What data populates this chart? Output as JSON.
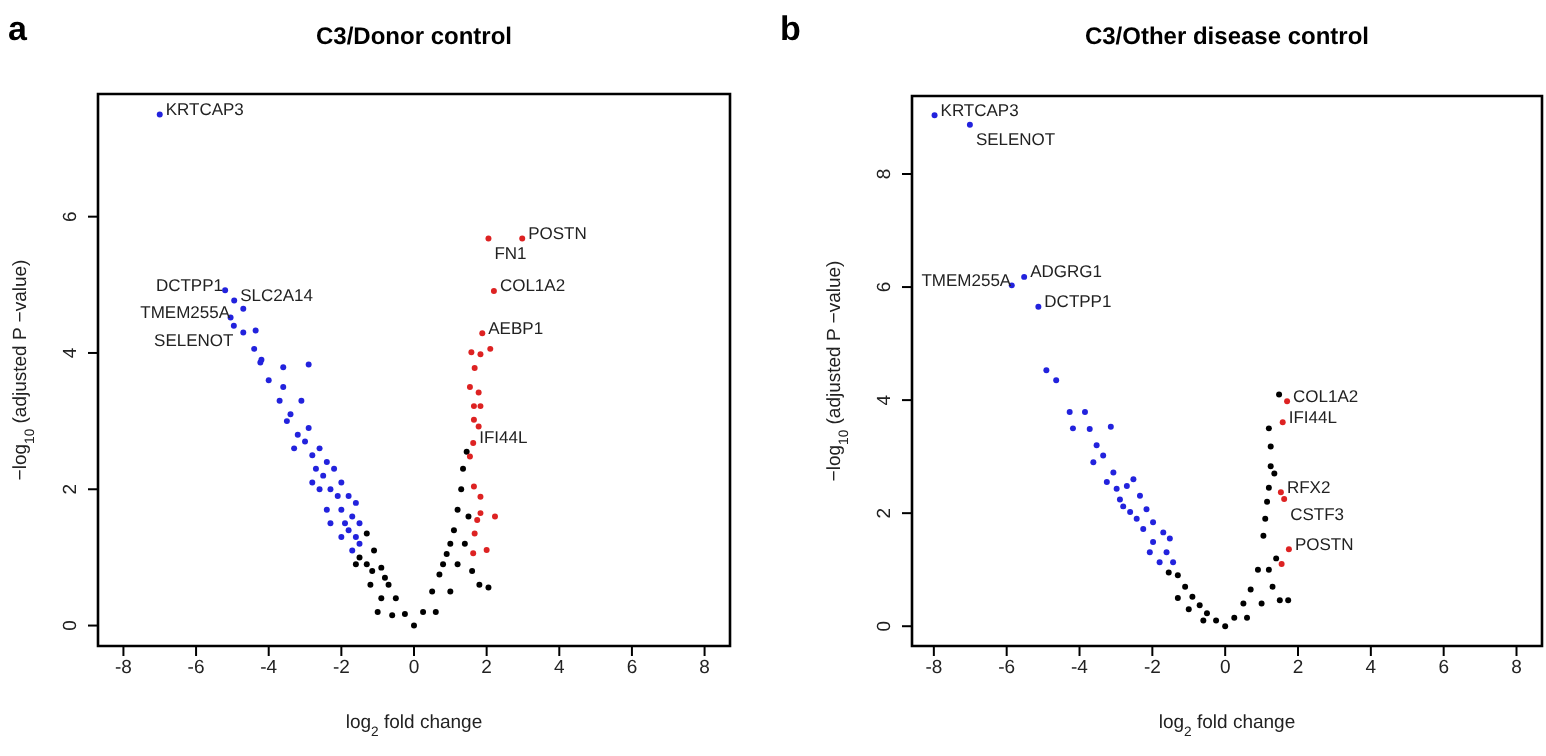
{
  "chart_data": [
    {
      "type": "scatter",
      "title": "C3/Donor control",
      "xlabel": "log$_{2}$ fold change",
      "ylabel": "−log$_{10}$ (adjusted P −value)",
      "marker": "circle",
      "xlim": [
        -8.7,
        8.7
      ],
      "ylim": [
        -0.3,
        7.8
      ],
      "xticks": [
        -8,
        -6,
        -4,
        -2,
        0,
        2,
        4,
        6,
        8
      ],
      "yticks": [
        0,
        2,
        4,
        6
      ],
      "series": [
        {
          "color": "#000000",
          "x": [
            0,
            -0.25,
            0.25,
            -0.5,
            0.5,
            -0.7,
            0.7,
            -0.9,
            0.9,
            -1.1,
            1.1,
            -1.3,
            1.3,
            -1.15,
            1.35,
            1.45,
            -1.3,
            -1.5,
            -1.2,
            -0.9,
            -1.0,
            -0.6,
            0.6,
            1.0,
            1.2,
            1.4,
            1.6,
            1.8,
            2.05,
            1.5,
            -1.6,
            1.2,
            1.0,
            -0.8,
            0.8
          ],
          "values": [
            0,
            0.17,
            0.2,
            0.4,
            0.5,
            0.6,
            0.75,
            0.85,
            1.05,
            1.1,
            1.4,
            1.35,
            2.0,
            0.8,
            2.3,
            2.55,
            0.9,
            1.0,
            0.6,
            0.4,
            0.2,
            0.15,
            0.2,
            0.5,
            0.9,
            1.2,
            0.8,
            0.6,
            0.56,
            1.6,
            0.9,
            1.7,
            1.2,
            0.7,
            0.9
          ]
        },
        {
          "color": "#2222dd",
          "x": [
            -7.0,
            -4.95,
            -5.2,
            -5.05,
            -4.7,
            -4.96,
            -4.7,
            -4.36,
            -4.4,
            -4.23,
            -3.6,
            -2.9,
            -4.2,
            -4.0,
            -3.7,
            -3.6,
            -3.4,
            -3.5,
            -3.2,
            -3.0,
            -3.1,
            -2.8,
            -2.9,
            -2.7,
            -2.6,
            -2.5,
            -2.4,
            -2.3,
            -2.2,
            -2.1,
            -2.0,
            -2.0,
            -1.9,
            -1.8,
            -1.8,
            -1.7,
            -1.6,
            -1.6,
            -1.5,
            -1.5,
            -2.4,
            -2.6,
            -2.8,
            -3.3,
            -2.3,
            -2.0,
            -1.7
          ],
          "values": [
            7.5,
            4.77,
            4.92,
            4.52,
            4.65,
            4.4,
            4.3,
            4.33,
            4.06,
            3.86,
            3.79,
            3.83,
            3.9,
            3.6,
            3.3,
            3.5,
            3.1,
            3.0,
            2.8,
            2.7,
            3.3,
            2.5,
            2.9,
            2.3,
            2.6,
            2.2,
            2.4,
            2.0,
            2.3,
            1.9,
            2.1,
            1.7,
            1.5,
            1.9,
            1.4,
            1.6,
            1.3,
            1.8,
            1.2,
            1.5,
            1.7,
            2.0,
            2.1,
            2.6,
            1.5,
            1.3,
            1.1
          ]
        },
        {
          "color": "#dd2222",
          "x": [
            2.05,
            2.98,
            2.2,
            1.88,
            1.58,
            1.83,
            2.1,
            1.67,
            1.54,
            1.78,
            1.65,
            1.83,
            1.65,
            1.78,
            1.63,
            1.54,
            1.65,
            1.83,
            2.23,
            1.74,
            2.0,
            1.63,
            1.67,
            1.83
          ],
          "values": [
            5.68,
            5.68,
            4.91,
            4.29,
            4.01,
            3.98,
            4.06,
            3.78,
            3.5,
            3.42,
            3.22,
            3.22,
            3.02,
            2.92,
            2.68,
            2.48,
            2.04,
            1.89,
            1.6,
            1.55,
            1.11,
            1.06,
            1.35,
            1.65
          ]
        }
      ],
      "annotations": [
        "a",
        {
          "text": "KRTCAP3",
          "x": -7.0,
          "y": 7.5
        },
        {
          "text": "POSTN",
          "x": 2.98,
          "y": 5.68
        },
        {
          "text": "FN1",
          "x": 2.05,
          "y": 5.68
        },
        {
          "text": "COL1A2",
          "x": 2.2,
          "y": 4.91
        },
        {
          "text": "AEBP1",
          "x": 1.88,
          "y": 4.29
        },
        {
          "text": "SLC2A14",
          "x": -4.95,
          "y": 4.77
        },
        {
          "text": "DCTPP1",
          "x": -5.2,
          "y": 4.92
        },
        {
          "text": "TMEM255A",
          "x": -5.05,
          "y": 4.52
        },
        {
          "text": "SELENOT",
          "x": -4.96,
          "y": 4.4
        },
        {
          "text": "IFI44L",
          "x": 1.63,
          "y": 2.68
        }
      ]
    },
    {
      "type": "scatter",
      "title": "C3/Other disease control",
      "xlabel": "log$_{2}$ fold change",
      "ylabel": "−log$_{10}$ (adjusted P −value)",
      "marker": "circle",
      "xlim": [
        -8.6,
        8.7
      ],
      "ylim": [
        -0.35,
        9.38
      ],
      "xticks": [
        -8,
        -6,
        -4,
        -2,
        0,
        2,
        4,
        6,
        8
      ],
      "yticks": [
        0,
        2,
        4,
        6,
        8
      ],
      "series": [
        {
          "color": "#000000",
          "x": [
            0,
            -0.25,
            0.25,
            -0.5,
            0.5,
            -0.7,
            0.7,
            -0.9,
            0.9,
            -1.1,
            1.05,
            -1.3,
            1.1,
            -1.55,
            1.15,
            1.2,
            1.25,
            1.25,
            1.2,
            1.48,
            1.35,
            1.5,
            1.73,
            1.3,
            1.0,
            -1.0,
            -0.6,
            0.6,
            1.2,
            1.4,
            -1.3
          ],
          "values": [
            0,
            0.1,
            0.15,
            0.23,
            0.4,
            0.37,
            0.65,
            0.52,
            1.0,
            0.7,
            1.6,
            0.9,
            1.9,
            0.95,
            2.2,
            2.45,
            2.83,
            3.18,
            3.5,
            4.1,
            2.7,
            0.46,
            0.46,
            0.7,
            0.4,
            0.3,
            0.1,
            0.15,
            1.0,
            1.2,
            0.5
          ]
        },
        {
          "color": "#2222dd",
          "x": [
            -7.98,
            -7.01,
            -5.86,
            -5.52,
            -5.13,
            -4.91,
            -4.64,
            -4.27,
            -3.85,
            -4.18,
            -3.72,
            -3.14,
            -3.53,
            -3.35,
            -3.62,
            -3.07,
            -3.25,
            -2.7,
            -2.52,
            -2.89,
            -2.34,
            -2.16,
            -2.61,
            -1.98,
            -2.25,
            -1.7,
            -1.98,
            -1.61,
            -1.8,
            -1.43,
            -2.07,
            -1.52,
            -2.43,
            -2.8,
            -2.98
          ],
          "values": [
            9.04,
            8.87,
            6.03,
            6.18,
            5.65,
            4.53,
            4.35,
            3.79,
            3.79,
            3.5,
            3.49,
            3.53,
            3.2,
            3.02,
            2.9,
            2.72,
            2.55,
            2.48,
            2.6,
            2.24,
            2.31,
            2.07,
            2.02,
            1.84,
            1.72,
            1.66,
            1.49,
            1.31,
            1.13,
            1.13,
            1.31,
            1.55,
            1.9,
            2.12,
            2.43
          ]
        },
        {
          "color": "#dd2222",
          "x": [
            1.7,
            1.58,
            1.53,
            1.62,
            1.75,
            1.55
          ],
          "values": [
            3.98,
            3.61,
            2.37,
            2.25,
            1.36,
            1.1
          ]
        }
      ],
      "annotations": [
        "b",
        {
          "text": "KRTCAP3",
          "x": -7.98,
          "y": 9.04
        },
        {
          "text": "SELENOT",
          "x": -7.01,
          "y": 8.87
        },
        {
          "text": "ADGRG1",
          "x": -5.52,
          "y": 6.18
        },
        {
          "text": "TMEM255A",
          "x": -5.86,
          "y": 6.03
        },
        {
          "text": "DCTPP1",
          "x": -5.13,
          "y": 5.65
        },
        {
          "text": "COL1A2",
          "x": 1.7,
          "y": 3.98
        },
        {
          "text": "IFI44L",
          "x": 1.58,
          "y": 3.61
        },
        {
          "text": "RFX2",
          "x": 1.53,
          "y": 2.37
        },
        {
          "text": "CSTF3",
          "x": 1.62,
          "y": 2.25
        },
        {
          "text": "POSTN",
          "x": 1.75,
          "y": 1.36
        }
      ]
    }
  ]
}
